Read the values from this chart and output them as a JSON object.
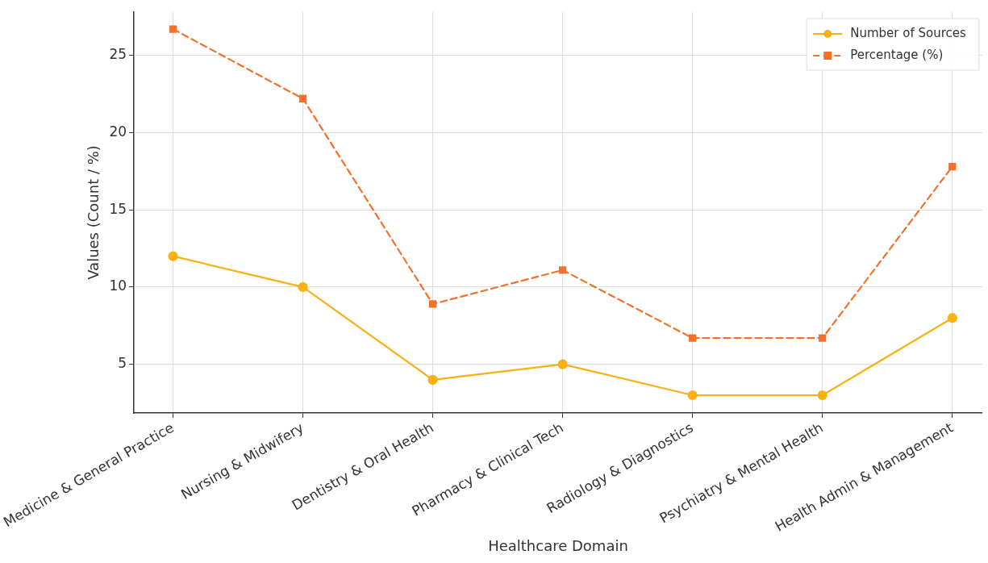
{
  "chart_data": {
    "type": "line",
    "xlabel": "Healthcare Domain",
    "ylabel": "Values (Count / %)",
    "categories": [
      "Medicine & General Practice",
      "Nursing & Midwifery",
      "Dentistry & Oral Health",
      "Pharmacy & Clinical Tech",
      "Radiology & Diagnostics",
      "Psychiatry & Mental Health",
      "Health Admin & Management"
    ],
    "series": [
      {
        "name": "Number of Sources",
        "color": "#fbb013",
        "marker": "circle",
        "line_style": "solid",
        "values": [
          12,
          10,
          4,
          5,
          3,
          3,
          8
        ]
      },
      {
        "name": "Percentage (%)",
        "color": "#f3712b",
        "marker": "square",
        "line_style": "dashed",
        "values": [
          26.7,
          22.2,
          8.9,
          11.1,
          6.7,
          6.7,
          17.8
        ]
      }
    ],
    "ylim": [
      1.85,
      27.8
    ],
    "yticks": [
      5,
      10,
      15,
      20,
      25
    ],
    "grid": true,
    "legend": "top right"
  }
}
